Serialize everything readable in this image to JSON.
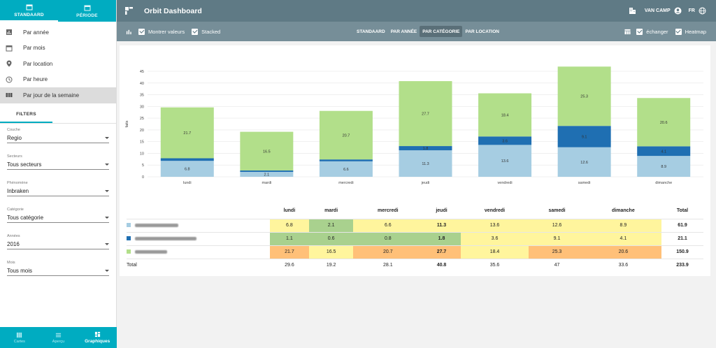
{
  "sidebar": {
    "tabs": [
      {
        "label": "STANDAARD",
        "icon": "calendar-icon",
        "active": true
      },
      {
        "label": "PÉRIODE",
        "icon": "calendar-icon",
        "active": false
      }
    ],
    "menu": [
      {
        "label": "Par année",
        "icon": "bar-chart-icon"
      },
      {
        "label": "Par mois",
        "icon": "calendar-icon"
      },
      {
        "label": "Par location",
        "icon": "location-pin-icon"
      },
      {
        "label": "Par heure",
        "icon": "clock-icon"
      },
      {
        "label": "Par jour de la semaine",
        "icon": "view-week-icon",
        "active": true
      }
    ],
    "filters_tab": "FILTERS",
    "filters": [
      {
        "label": "Couche",
        "value": "Regio"
      },
      {
        "label": "Secteurs",
        "value": "Tous secteurs"
      },
      {
        "label": "Phénomène",
        "value": "Inbraken"
      },
      {
        "label": "Catégorie",
        "value": "Tous catégorie"
      },
      {
        "label": "Années",
        "value": "2016"
      },
      {
        "label": "Mois",
        "value": "Tous mois"
      }
    ],
    "bottom_nav": [
      {
        "label": "Cartes",
        "icon": "map-icon"
      },
      {
        "label": "Aperçu",
        "icon": "list-icon"
      },
      {
        "label": "Graphiques",
        "icon": "dashboard-icon",
        "active": true
      }
    ]
  },
  "header": {
    "title": "Orbit Dashboard",
    "user": "VAN CAMP",
    "language": "FR"
  },
  "toolbar": {
    "show_values": "Montrer valeurs",
    "stacked": "Stacked",
    "modes": [
      "STANDAARD",
      "PAR ANNÉE",
      "PAR CATÉGORIE",
      "PAR LOCATION"
    ],
    "active_mode": "PAR CATÉGORIE",
    "swap": "échanger",
    "heatmap": "Heatmap"
  },
  "colors": {
    "series": [
      "#a6cde2",
      "#1f6fb2",
      "#b2df8a"
    ]
  },
  "chart_data": {
    "type": "bar",
    "stacked": true,
    "ylabel": "faits",
    "ylim": [
      0,
      45
    ],
    "yticks": [
      0,
      5,
      10,
      15,
      20,
      25,
      30,
      35,
      40,
      45
    ],
    "categories": [
      "lundi",
      "mardi",
      "mercredi",
      "jeudi",
      "vendredi",
      "samedi",
      "dimanche"
    ],
    "series": [
      {
        "values": [
          6.8,
          2.1,
          6.6,
          11.3,
          13.6,
          12.6,
          8.9
        ],
        "labels": [
          "6.8",
          "2.1",
          "6.6",
          "11.3",
          "13.6",
          "12.6",
          "8.9"
        ]
      },
      {
        "values": [
          1.1,
          0.6,
          0.8,
          1.8,
          3.6,
          9.1,
          4.1
        ],
        "labels": [
          "",
          "",
          "",
          "1.8",
          "3.6",
          "9.1",
          "4.1"
        ]
      },
      {
        "values": [
          21.7,
          16.5,
          20.7,
          27.7,
          18.4,
          25.3,
          20.6
        ],
        "labels": [
          "21.7",
          "16.5",
          "20.7",
          "27.7",
          "18.4",
          "25.3",
          "20.6"
        ]
      }
    ]
  },
  "table": {
    "headers": [
      "lundi",
      "mardi",
      "mercredi",
      "jeudi",
      "vendredi",
      "samedi",
      "dimanche",
      "Total"
    ],
    "rows": [
      {
        "cells": [
          "6.8",
          "2.1",
          "6.6",
          "11.3",
          "13.6",
          "12.6",
          "8.9"
        ],
        "total": "61.9",
        "heat": [
          "y",
          "g",
          "y",
          "y",
          "y",
          "y",
          "y"
        ],
        "bold": [
          false,
          false,
          false,
          true,
          false,
          false,
          false
        ]
      },
      {
        "cells": [
          "1.1",
          "0.6",
          "0.8",
          "1.8",
          "3.6",
          "9.1",
          "4.1"
        ],
        "total": "21.1",
        "heat": [
          "g",
          "g",
          "g",
          "g",
          "y",
          "y",
          "y"
        ],
        "bold": [
          false,
          false,
          false,
          true,
          false,
          false,
          false
        ]
      },
      {
        "cells": [
          "21.7",
          "16.5",
          "20.7",
          "27.7",
          "18.4",
          "25.3",
          "20.6"
        ],
        "total": "150.9",
        "heat": [
          "o",
          "y",
          "o",
          "o",
          "y",
          "o",
          "o"
        ],
        "bold": [
          false,
          false,
          false,
          true,
          false,
          false,
          false
        ]
      }
    ],
    "total_label": "Total",
    "totals": [
      "29.6",
      "19.2",
      "28.1",
      "40.8",
      "35.6",
      "47",
      "33.6"
    ],
    "grand_total": "233.9"
  }
}
